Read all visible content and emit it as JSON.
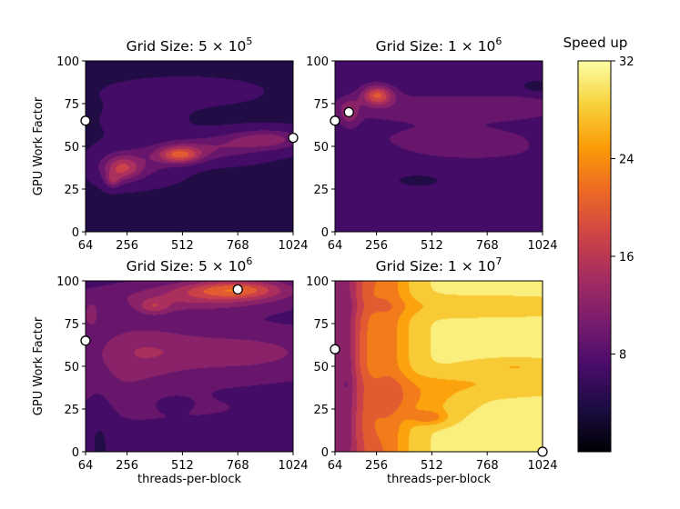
{
  "colorbar": {
    "title": "Speed up",
    "min": 0,
    "max": 32,
    "ticks": [
      8,
      16,
      24,
      32
    ],
    "tick_labels": [
      "8",
      "16",
      "24",
      "32"
    ],
    "colormap": "inferno",
    "colormap_stops": [
      "#000004",
      "#1b0c41",
      "#4a0c6b",
      "#781c6d",
      "#a52c60",
      "#cf4446",
      "#ed6925",
      "#fb9b06",
      "#f7d13d",
      "#fcffa4"
    ]
  },
  "chart_data": [
    {
      "type": "heatmap",
      "title_prefix": "Grid Size: ",
      "title_mantissa": "5",
      "title_times": "×",
      "title_base": "10",
      "title_exp": "5",
      "xlabel": "",
      "ylabel": "GPU Work Factor",
      "xlim": [
        64,
        1024
      ],
      "ylim": [
        0,
        100
      ],
      "xticks": [
        64,
        256,
        512,
        768,
        1024
      ],
      "xtick_labels": [
        "64",
        "256",
        "512",
        "768",
        "1024"
      ],
      "yticks": [
        0,
        25,
        50,
        75,
        100
      ],
      "ytick_labels": [
        "0",
        "25",
        "50",
        "75",
        "100"
      ],
      "base_value": 5,
      "blobs": [
        {
          "x": 230,
          "y": 37,
          "sx": 60,
          "sy": 5,
          "v": 9
        },
        {
          "x": 310,
          "y": 40,
          "sx": 120,
          "sy": 7,
          "v": 4
        },
        {
          "x": 500,
          "y": 45,
          "sx": 70,
          "sy": 3.5,
          "v": 12
        },
        {
          "x": 640,
          "y": 49,
          "sx": 160,
          "sy": 5,
          "v": 5
        },
        {
          "x": 900,
          "y": 54,
          "sx": 120,
          "sy": 4,
          "v": 7
        },
        {
          "x": 190,
          "y": 30,
          "sx": 25,
          "sy": 3,
          "v": 6
        },
        {
          "x": 520,
          "y": 82,
          "sx": 250,
          "sy": 6,
          "v": 1
        },
        {
          "x": 330,
          "y": 65,
          "sx": 150,
          "sy": 8,
          "v": 0.8
        }
      ],
      "markers": [
        {
          "x": 64,
          "y": 65
        },
        {
          "x": 1024,
          "y": 55
        }
      ]
    },
    {
      "type": "heatmap",
      "title_prefix": "Grid Size: ",
      "title_mantissa": "1",
      "title_times": "×",
      "title_base": "10",
      "title_exp": "6",
      "xlabel": "",
      "ylabel": "",
      "xlim": [
        64,
        1024
      ],
      "ylim": [
        0,
        100
      ],
      "xticks": [
        64,
        256,
        512,
        768,
        1024
      ],
      "xtick_labels": [
        "64",
        "256",
        "512",
        "768",
        "1024"
      ],
      "yticks": [
        0,
        25,
        50,
        75,
        100
      ],
      "ytick_labels": [
        "0",
        "25",
        "50",
        "75",
        "100"
      ],
      "base_value": 6,
      "blobs": [
        {
          "x": 260,
          "y": 80,
          "sx": 50,
          "sy": 4,
          "v": 12
        },
        {
          "x": 520,
          "y": 73,
          "sx": 420,
          "sy": 6,
          "v": 3.5
        },
        {
          "x": 620,
          "y": 55,
          "sx": 400,
          "sy": 7,
          "v": 2.5
        },
        {
          "x": 130,
          "y": 70,
          "sx": 30,
          "sy": 5,
          "v": 6
        },
        {
          "x": 720,
          "y": 45,
          "sx": 300,
          "sy": 5,
          "v": 1.5
        },
        {
          "x": 900,
          "y": 73,
          "sx": 120,
          "sy": 4,
          "v": 2
        },
        {
          "x": 450,
          "y": 30,
          "sx": 60,
          "sy": 2,
          "v": -2
        },
        {
          "x": 1000,
          "y": 85,
          "sx": 40,
          "sy": 2,
          "v": -3
        }
      ],
      "markers": [
        {
          "x": 64,
          "y": 65
        },
        {
          "x": 128,
          "y": 70
        }
      ]
    },
    {
      "type": "heatmap",
      "title_prefix": "Grid Size: ",
      "title_mantissa": "5",
      "title_times": "×",
      "title_base": "10",
      "title_exp": "6",
      "xlabel": "threads-per-block",
      "ylabel": "GPU Work Factor",
      "xlim": [
        64,
        1024
      ],
      "ylim": [
        0,
        100
      ],
      "xticks": [
        64,
        256,
        512,
        768,
        1024
      ],
      "xtick_labels": [
        "64",
        "256",
        "512",
        "768",
        "1024"
      ],
      "yticks": [
        0,
        25,
        50,
        75,
        100
      ],
      "ytick_labels": [
        "0",
        "25",
        "50",
        "75",
        "100"
      ],
      "base_value": 7,
      "blobs": [
        {
          "x": 760,
          "y": 95,
          "sx": 160,
          "sy": 4,
          "v": 11
        },
        {
          "x": 560,
          "y": 90,
          "sx": 280,
          "sy": 6,
          "v": 6
        },
        {
          "x": 380,
          "y": 85,
          "sx": 50,
          "sy": 3,
          "v": 5
        },
        {
          "x": 700,
          "y": 58,
          "sx": 380,
          "sy": 10,
          "v": 5
        },
        {
          "x": 300,
          "y": 62,
          "sx": 160,
          "sy": 12,
          "v": 3
        },
        {
          "x": 200,
          "y": 40,
          "sx": 180,
          "sy": 12,
          "v": 2.5
        },
        {
          "x": 90,
          "y": 80,
          "sx": 30,
          "sy": 6,
          "v": 4
        },
        {
          "x": 620,
          "y": 25,
          "sx": 380,
          "sy": 9,
          "v": 1
        },
        {
          "x": 460,
          "y": 28,
          "sx": 50,
          "sy": 3,
          "v": -2
        },
        {
          "x": 130,
          "y": 10,
          "sx": 50,
          "sy": 30,
          "v": -2
        }
      ],
      "markers": [
        {
          "x": 64,
          "y": 65
        },
        {
          "x": 768,
          "y": 95
        }
      ]
    },
    {
      "type": "heatmap",
      "title_prefix": "Grid Size: ",
      "title_mantissa": "1",
      "title_times": "×",
      "title_base": "10",
      "title_exp": "7",
      "xlabel": "threads-per-block",
      "ylabel": "",
      "xlim": [
        64,
        1024
      ],
      "ylim": [
        0,
        100
      ],
      "xticks": [
        64,
        256,
        512,
        768,
        1024
      ],
      "xtick_labels": [
        "64",
        "256",
        "512",
        "768",
        "1024"
      ],
      "yticks": [
        0,
        25,
        50,
        75,
        100
      ],
      "ytick_labels": [
        "0",
        "25",
        "50",
        "75",
        "100"
      ],
      "base_value": 13,
      "sigmoid": {
        "value": 17,
        "x0": 330,
        "w": 55
      },
      "blobs": [
        {
          "x": 230,
          "y": 55,
          "sx": 60,
          "sy": 60,
          "v": 7
        },
        {
          "x": 450,
          "y": 30,
          "sx": 150,
          "sy": 7,
          "v": -4
        },
        {
          "x": 500,
          "y": 20,
          "sx": 60,
          "sy": 3,
          "v": -6
        },
        {
          "x": 700,
          "y": 40,
          "sx": 350,
          "sy": 5,
          "v": -3
        },
        {
          "x": 700,
          "y": 85,
          "sx": 400,
          "sy": 4,
          "v": -2.5
        },
        {
          "x": 900,
          "y": 50,
          "sx": 150,
          "sy": 3,
          "v": -3
        },
        {
          "x": 120,
          "y": 45,
          "sx": 25,
          "sy": 50,
          "v": -3
        }
      ],
      "markers": [
        {
          "x": 64,
          "y": 60
        },
        {
          "x": 1024,
          "y": 0
        }
      ]
    }
  ]
}
